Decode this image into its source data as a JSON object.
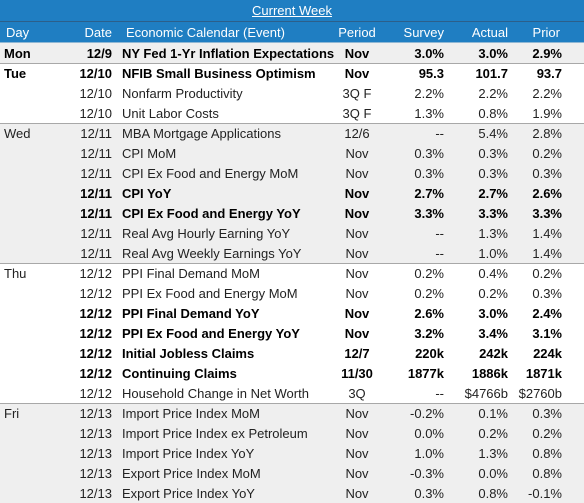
{
  "title": "Current Week",
  "headers": {
    "day": "Day",
    "date": "Date",
    "event": "Economic Calendar (Event)",
    "period": "Period",
    "survey": "Survey",
    "actual": "Actual",
    "prior": "Prior"
  },
  "rows": [
    {
      "day": "Mon",
      "date": "12/9",
      "event": "NY Fed 1-Yr Inflation Expectations",
      "period": "Nov",
      "survey": "3.0%",
      "actual": "3.0%",
      "prior": "2.9%"
    },
    {
      "day": "Tue",
      "date": "12/10",
      "event": "NFIB Small Business Optimism",
      "period": "Nov",
      "survey": "95.3",
      "actual": "101.7",
      "prior": "93.7"
    },
    {
      "day": "",
      "date": "12/10",
      "event": "Nonfarm Productivity",
      "period": "3Q F",
      "survey": "2.2%",
      "actual": "2.2%",
      "prior": "2.2%"
    },
    {
      "day": "",
      "date": "12/10",
      "event": "Unit Labor Costs",
      "period": "3Q F",
      "survey": "1.3%",
      "actual": "0.8%",
      "prior": "1.9%"
    },
    {
      "day": "Wed",
      "date": "12/11",
      "event": "MBA Mortgage Applications",
      "period": "12/6",
      "survey": "--",
      "actual": "5.4%",
      "prior": "2.8%"
    },
    {
      "day": "",
      "date": "12/11",
      "event": "CPI MoM",
      "period": "Nov",
      "survey": "0.3%",
      "actual": "0.3%",
      "prior": "0.2%"
    },
    {
      "day": "",
      "date": "12/11",
      "event": "CPI Ex Food and Energy MoM",
      "period": "Nov",
      "survey": "0.3%",
      "actual": "0.3%",
      "prior": "0.3%"
    },
    {
      "day": "",
      "date": "12/11",
      "event": "CPI YoY",
      "period": "Nov",
      "survey": "2.7%",
      "actual": "2.7%",
      "prior": "2.6%"
    },
    {
      "day": "",
      "date": "12/11",
      "event": "CPI Ex Food and Energy YoY",
      "period": "Nov",
      "survey": "3.3%",
      "actual": "3.3%",
      "prior": "3.3%"
    },
    {
      "day": "",
      "date": "12/11",
      "event": "Real Avg Hourly Earning YoY",
      "period": "Nov",
      "survey": "--",
      "actual": "1.3%",
      "prior": "1.4%"
    },
    {
      "day": "",
      "date": "12/11",
      "event": "Real Avg Weekly Earnings YoY",
      "period": "Nov",
      "survey": "--",
      "actual": "1.0%",
      "prior": "1.4%"
    },
    {
      "day": "Thu",
      "date": "12/12",
      "event": "PPI Final Demand MoM",
      "period": "Nov",
      "survey": "0.2%",
      "actual": "0.4%",
      "prior": "0.2%"
    },
    {
      "day": "",
      "date": "12/12",
      "event": "PPI Ex Food and Energy MoM",
      "period": "Nov",
      "survey": "0.2%",
      "actual": "0.2%",
      "prior": "0.3%"
    },
    {
      "day": "",
      "date": "12/12",
      "event": "PPI Final Demand YoY",
      "period": "Nov",
      "survey": "2.6%",
      "actual": "3.0%",
      "prior": "2.4%"
    },
    {
      "day": "",
      "date": "12/12",
      "event": "PPI Ex Food and Energy YoY",
      "period": "Nov",
      "survey": "3.2%",
      "actual": "3.4%",
      "prior": "3.1%"
    },
    {
      "day": "",
      "date": "12/12",
      "event": "Initial Jobless Claims",
      "period": "12/7",
      "survey": "220k",
      "actual": "242k",
      "prior": "224k"
    },
    {
      "day": "",
      "date": "12/12",
      "event": "Continuing Claims",
      "period": "11/30",
      "survey": "1877k",
      "actual": "1886k",
      "prior": "1871k"
    },
    {
      "day": "",
      "date": "12/12",
      "event": "Household Change in Net Worth",
      "period": "3Q",
      "survey": "--",
      "actual": "$4766b",
      "prior": "$2760b"
    },
    {
      "day": "Fri",
      "date": "12/13",
      "event": "Import Price Index MoM",
      "period": "Nov",
      "survey": "-0.2%",
      "actual": "0.1%",
      "prior": "0.3%"
    },
    {
      "day": "",
      "date": "12/13",
      "event": "Import Price Index ex Petroleum",
      "period": "Nov",
      "survey": "0.0%",
      "actual": "0.2%",
      "prior": "0.2%"
    },
    {
      "day": "",
      "date": "12/13",
      "event": "Import Price Index YoY",
      "period": "Nov",
      "survey": "1.0%",
      "actual": "1.3%",
      "prior": "0.8%"
    },
    {
      "day": "",
      "date": "12/13",
      "event": "Export Price Index MoM",
      "period": "Nov",
      "survey": "-0.3%",
      "actual": "0.0%",
      "prior": "0.8%"
    },
    {
      "day": "",
      "date": "12/13",
      "event": "Export Price Index YoY",
      "period": "Nov",
      "survey": "0.3%",
      "actual": "0.8%",
      "prior": "-0.1%"
    }
  ]
}
